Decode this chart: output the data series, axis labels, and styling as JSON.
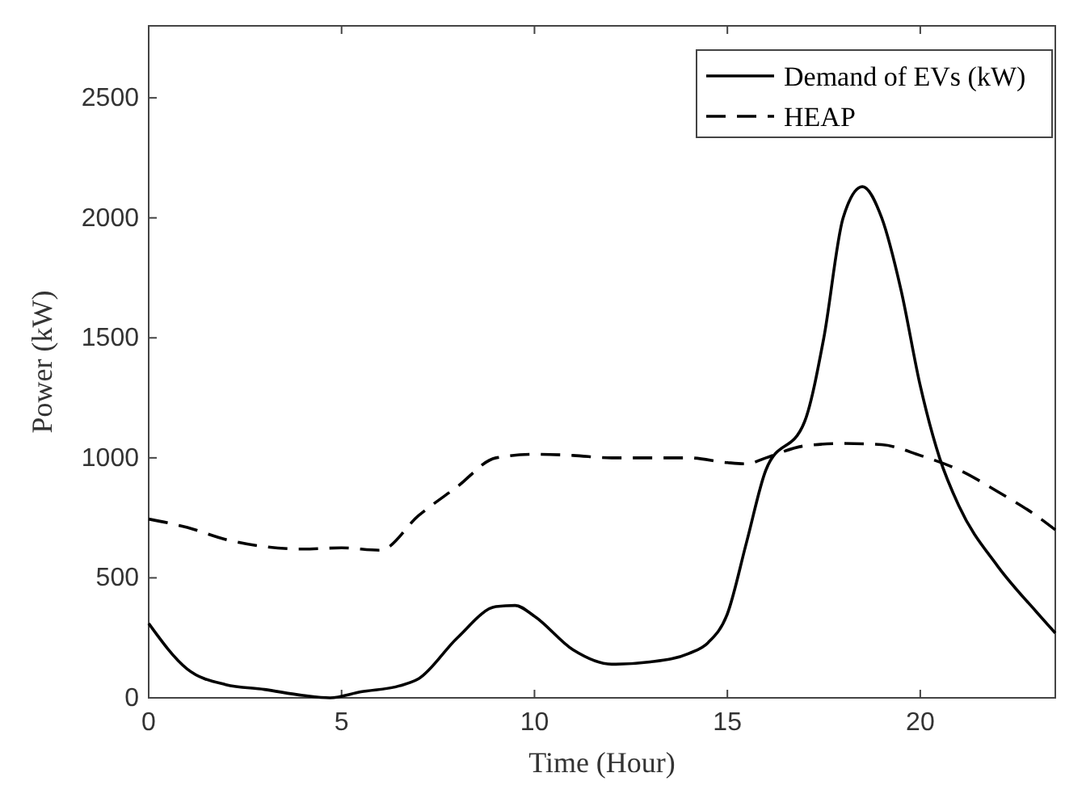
{
  "chart_data": {
    "type": "line",
    "xlabel": "Time (Hour)",
    "ylabel": "Power (kW)",
    "xlim": [
      0,
      23.5
    ],
    "ylim": [
      0,
      2800
    ],
    "xticks": [
      0,
      5,
      10,
      15,
      20
    ],
    "yticks": [
      0,
      500,
      1000,
      1500,
      2000,
      2500
    ],
    "legend": "top right",
    "grid": false,
    "series": [
      {
        "name": "Demand of EVs (kW)",
        "color": "#000000",
        "line_style": "solid",
        "x": [
          0,
          1,
          2,
          3,
          4,
          4.7,
          5.5,
          6.5,
          7,
          8,
          9,
          9.5,
          10,
          11,
          12,
          13,
          14,
          14.5,
          15,
          15.5,
          16,
          17,
          17.5,
          18,
          18.5,
          19,
          19.5,
          20,
          20.5,
          21,
          22,
          23,
          23.5
        ],
        "values": [
          310,
          120,
          55,
          35,
          10,
          0,
          25,
          50,
          80,
          250,
          380,
          385,
          340,
          200,
          140,
          150,
          185,
          230,
          350,
          650,
          950,
          1150,
          1500,
          2000,
          2130,
          2000,
          1700,
          1300,
          1000,
          800,
          550,
          360,
          270
        ]
      },
      {
        "name": "HEAP",
        "color": "#000000",
        "line_style": "dashed",
        "x": [
          0,
          1,
          2,
          3,
          4,
          5,
          6,
          7,
          8,
          9,
          10,
          11,
          12,
          13,
          14,
          15,
          15.5,
          16,
          17,
          18,
          19,
          20,
          21,
          22,
          23,
          23.5
        ],
        "values": [
          745,
          710,
          660,
          630,
          620,
          625,
          615,
          760,
          880,
          1000,
          1015,
          1010,
          1000,
          1000,
          1000,
          980,
          975,
          1000,
          1050,
          1060,
          1055,
          1010,
          950,
          860,
          760,
          700
        ]
      }
    ]
  }
}
